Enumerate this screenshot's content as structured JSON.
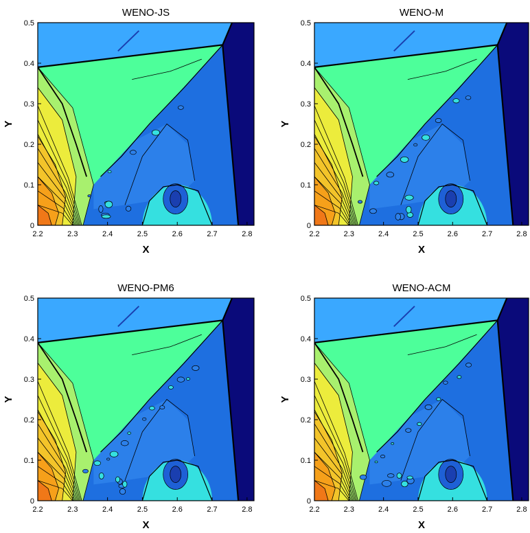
{
  "chart_data": [
    {
      "type": "heatmap",
      "title": "WENO-JS",
      "xlabel": "X",
      "ylabel": "Y",
      "xlim": [
        2.2,
        2.82
      ],
      "ylim": [
        0,
        0.5
      ],
      "xticks": [
        "2.2",
        "2.3",
        "2.4",
        "2.5",
        "2.6",
        "2.7",
        "2.8"
      ],
      "yticks": [
        "0",
        "0.1",
        "0.2",
        "0.3",
        "0.4",
        "0.5"
      ],
      "colormap": [
        "#0a0a7a",
        "#1e6fe0",
        "#3aa8ff",
        "#35e0e0",
        "#4dff9a",
        "#a8f06e",
        "#ecec3c",
        "#f6a01a",
        "#f07818"
      ],
      "grid": false
    },
    {
      "type": "heatmap",
      "title": "WENO-M",
      "xlabel": "X",
      "ylabel": "Y",
      "xlim": [
        2.2,
        2.82
      ],
      "ylim": [
        0,
        0.5
      ],
      "xticks": [
        "2.2",
        "2.3",
        "2.4",
        "2.5",
        "2.6",
        "2.7",
        "2.8"
      ],
      "yticks": [
        "0",
        "0.1",
        "0.2",
        "0.3",
        "0.4",
        "0.5"
      ],
      "colormap": [
        "#0a0a7a",
        "#1e6fe0",
        "#3aa8ff",
        "#35e0e0",
        "#4dff9a",
        "#a8f06e",
        "#ecec3c",
        "#f6a01a",
        "#f07818"
      ],
      "grid": false
    },
    {
      "type": "heatmap",
      "title": "WENO-PM6",
      "xlabel": "X",
      "ylabel": "Y",
      "xlim": [
        2.2,
        2.82
      ],
      "ylim": [
        0,
        0.5
      ],
      "xticks": [
        "2.2",
        "2.3",
        "2.4",
        "2.5",
        "2.6",
        "2.7",
        "2.8"
      ],
      "yticks": [
        "0",
        "0.1",
        "0.2",
        "0.3",
        "0.4",
        "0.5"
      ],
      "colormap": [
        "#0a0a7a",
        "#1e6fe0",
        "#3aa8ff",
        "#35e0e0",
        "#4dff9a",
        "#a8f06e",
        "#ecec3c",
        "#f6a01a",
        "#f07818"
      ],
      "grid": false
    },
    {
      "type": "heatmap",
      "title": "WENO-ACM",
      "xlabel": "X",
      "ylabel": "Y",
      "xlim": [
        2.2,
        2.82
      ],
      "ylim": [
        0,
        0.5
      ],
      "xticks": [
        "2.2",
        "2.3",
        "2.4",
        "2.5",
        "2.6",
        "2.7",
        "2.8"
      ],
      "yticks": [
        "0",
        "0.1",
        "0.2",
        "0.3",
        "0.4",
        "0.5"
      ],
      "colormap": [
        "#0a0a7a",
        "#1e6fe0",
        "#3aa8ff",
        "#35e0e0",
        "#4dff9a",
        "#a8f06e",
        "#ecec3c",
        "#f6a01a",
        "#f07818"
      ],
      "grid": false
    }
  ]
}
